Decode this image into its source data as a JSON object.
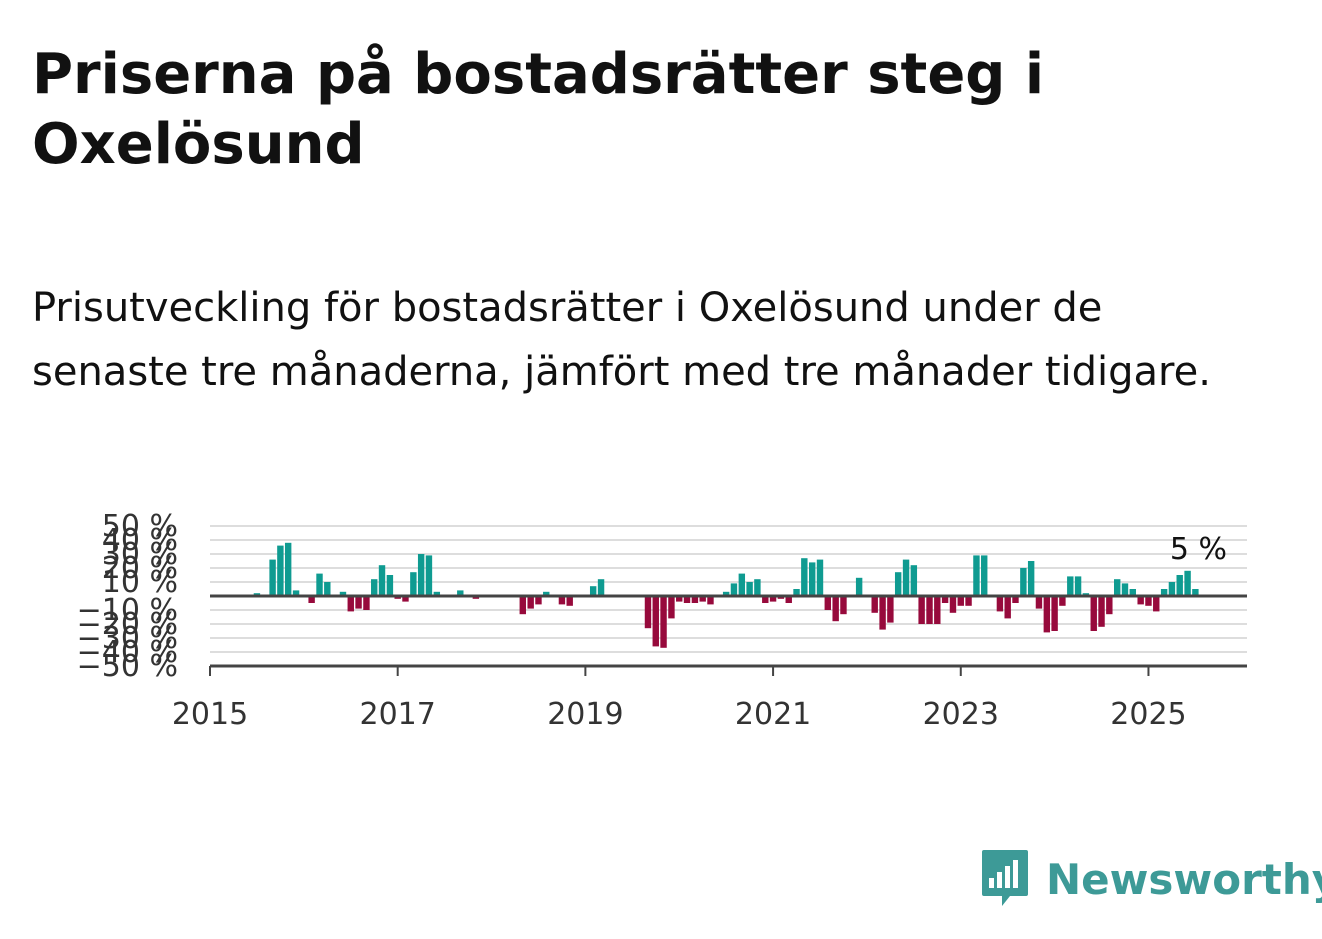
{
  "title": "Priserna på bostadsrätter steg i Oxelösund",
  "subtitle": "Prisutveckling för bostadsrätter i Oxelösund under de senaste tre månaderna, jämfört med tre månader tidigare.",
  "brand": {
    "name": "Newsworthy",
    "color": "#3d9a97"
  },
  "colors": {
    "positive": "#0f9b91",
    "negative": "#970a3c",
    "grid": "#dddddd",
    "axis": "#444444"
  },
  "chart_data": {
    "type": "bar",
    "ylim": [
      -50,
      50
    ],
    "y_ticks": [
      -50,
      -40,
      -30,
      -20,
      -10,
      10,
      20,
      30,
      40,
      50
    ],
    "y_tick_labels": [
      "−50 %",
      "−40 %",
      "−30 %",
      "−20 %",
      "−10 %",
      "10 %",
      "20 %",
      "30 %",
      "40 %",
      "50 %"
    ],
    "x_ticks": [
      2015,
      2017,
      2019,
      2021,
      2023,
      2025
    ],
    "x_tick_labels": [
      "2015",
      "2017",
      "2019",
      "2021",
      "2023",
      "2025"
    ],
    "x_range": [
      2015,
      2026.05
    ],
    "annotation": {
      "label": "5 %",
      "value": 5
    },
    "x": [
      2015.5,
      2015.667,
      2015.75,
      2015.833,
      2015.917,
      2016.083,
      2016.167,
      2016.25,
      2016.417,
      2016.5,
      2016.583,
      2016.667,
      2016.75,
      2016.833,
      2016.917,
      2017.0,
      2017.083,
      2017.167,
      2017.25,
      2017.333,
      2017.417,
      2017.583,
      2017.667,
      2017.833,
      2018.333,
      2018.417,
      2018.5,
      2018.583,
      2018.75,
      2018.833,
      2019.083,
      2019.167,
      2019.333,
      2019.667,
      2019.75,
      2019.833,
      2019.917,
      2020.0,
      2020.083,
      2020.167,
      2020.25,
      2020.333,
      2020.5,
      2020.583,
      2020.667,
      2020.75,
      2020.833,
      2020.917,
      2021.0,
      2021.083,
      2021.167,
      2021.25,
      2021.333,
      2021.417,
      2021.5,
      2021.583,
      2021.667,
      2021.75,
      2021.917,
      2022.083,
      2022.167,
      2022.25,
      2022.333,
      2022.417,
      2022.5,
      2022.583,
      2022.667,
      2022.75,
      2022.833,
      2022.917,
      2023.0,
      2023.083,
      2023.167,
      2023.25,
      2023.417,
      2023.5,
      2023.583,
      2023.667,
      2023.75,
      2023.833,
      2023.917,
      2024.0,
      2024.083,
      2024.167,
      2024.25,
      2024.333,
      2024.417,
      2024.5,
      2024.583,
      2024.667,
      2024.75,
      2024.833,
      2024.917,
      2025.0,
      2025.083,
      2025.167,
      2025.25,
      2025.333,
      2025.417,
      2025.5
    ],
    "values": [
      2,
      26,
      36,
      38,
      4,
      -5,
      16,
      10,
      3,
      -11,
      -9,
      -10,
      12,
      22,
      15,
      -2,
      -4,
      17,
      30,
      29,
      3,
      1,
      4,
      -2,
      -13,
      -9,
      -6,
      3,
      -6,
      -7,
      7,
      12,
      -1,
      -23,
      -36,
      -37,
      -16,
      -4,
      -5,
      -5,
      -4,
      -6,
      3,
      9,
      16,
      10,
      12,
      -5,
      -4,
      -2,
      -5,
      5,
      27,
      24,
      26,
      -10,
      -18,
      -13,
      13,
      -12,
      -24,
      -19,
      17,
      26,
      22,
      -20,
      -20,
      -20,
      -5,
      -12,
      -7,
      -7,
      29,
      29,
      -11,
      -16,
      -5,
      20,
      25,
      -9,
      -26,
      -25,
      -7,
      14,
      14,
      2,
      -25,
      -22,
      -13,
      12,
      9,
      5,
      -6,
      -7,
      -11,
      5,
      10,
      15,
      18,
      5
    ]
  }
}
